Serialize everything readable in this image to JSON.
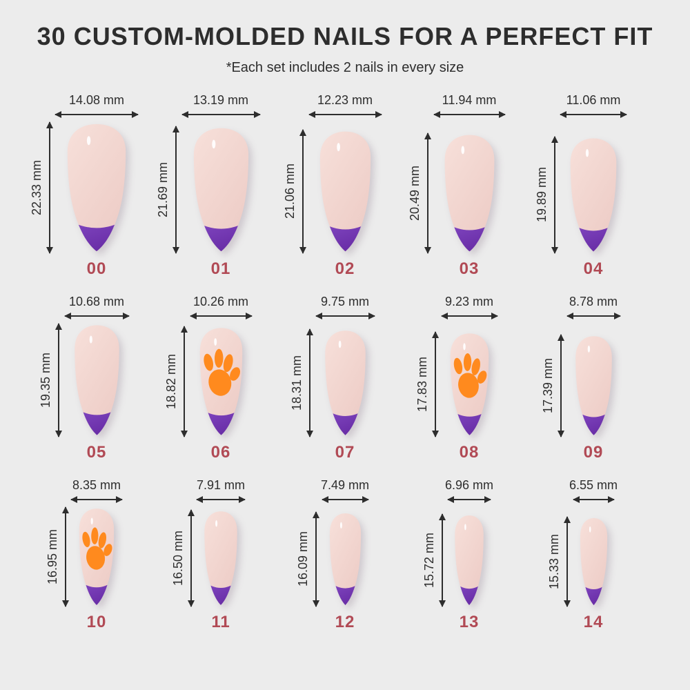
{
  "header": {
    "title": "30 CUSTOM-MOLDED NAILS FOR A PERFECT FIT",
    "subtitle": "*Each set includes 2 nails in every size"
  },
  "colors": {
    "background": "#ececec",
    "heading_text": "#2d2d2d",
    "measure_text": "#2d2d2d",
    "arrow": "#2d2d2d",
    "size_number": "#b14a55",
    "nail_base_light": "#f7e0da",
    "nail_base_dark": "#edccc6",
    "french_tip_light": "#8b52cc",
    "french_tip_dark": "#6327a0",
    "paw_print": "#ff8a1e"
  },
  "layout": {
    "nails_per_row": 5
  },
  "nails": [
    {
      "size_label": "00",
      "width_label": "14.08 mm",
      "height_label": "22.33 mm",
      "paw_print": false
    },
    {
      "size_label": "01",
      "width_label": "13.19 mm",
      "height_label": "21.69 mm",
      "paw_print": false
    },
    {
      "size_label": "02",
      "width_label": "12.23 mm",
      "height_label": "21.06 mm",
      "paw_print": false
    },
    {
      "size_label": "03",
      "width_label": "11.94 mm",
      "height_label": "20.49 mm",
      "paw_print": false
    },
    {
      "size_label": "04",
      "width_label": "11.06 mm",
      "height_label": "19.89 mm",
      "paw_print": false
    },
    {
      "size_label": "05",
      "width_label": "10.68 mm",
      "height_label": "19.35 mm",
      "paw_print": false
    },
    {
      "size_label": "06",
      "width_label": "10.26 mm",
      "height_label": "18.82 mm",
      "paw_print": true
    },
    {
      "size_label": "07",
      "width_label": "9.75 mm",
      "height_label": "18.31 mm",
      "paw_print": false
    },
    {
      "size_label": "08",
      "width_label": "9.23 mm",
      "height_label": "17.83 mm",
      "paw_print": true
    },
    {
      "size_label": "09",
      "width_label": "8.78 mm",
      "height_label": "17.39 mm",
      "paw_print": false
    },
    {
      "size_label": "10",
      "width_label": "8.35 mm",
      "height_label": "16.95 mm",
      "paw_print": true
    },
    {
      "size_label": "11",
      "width_label": "7.91 mm",
      "height_label": "16.50 mm",
      "paw_print": false
    },
    {
      "size_label": "12",
      "width_label": "7.49 mm",
      "height_label": "16.09 mm",
      "paw_print": false
    },
    {
      "size_label": "13",
      "width_label": "6.96 mm",
      "height_label": "15.72 mm",
      "paw_print": false
    },
    {
      "size_label": "14",
      "width_label": "6.55 mm",
      "height_label": "15.33 mm",
      "paw_print": false
    }
  ]
}
